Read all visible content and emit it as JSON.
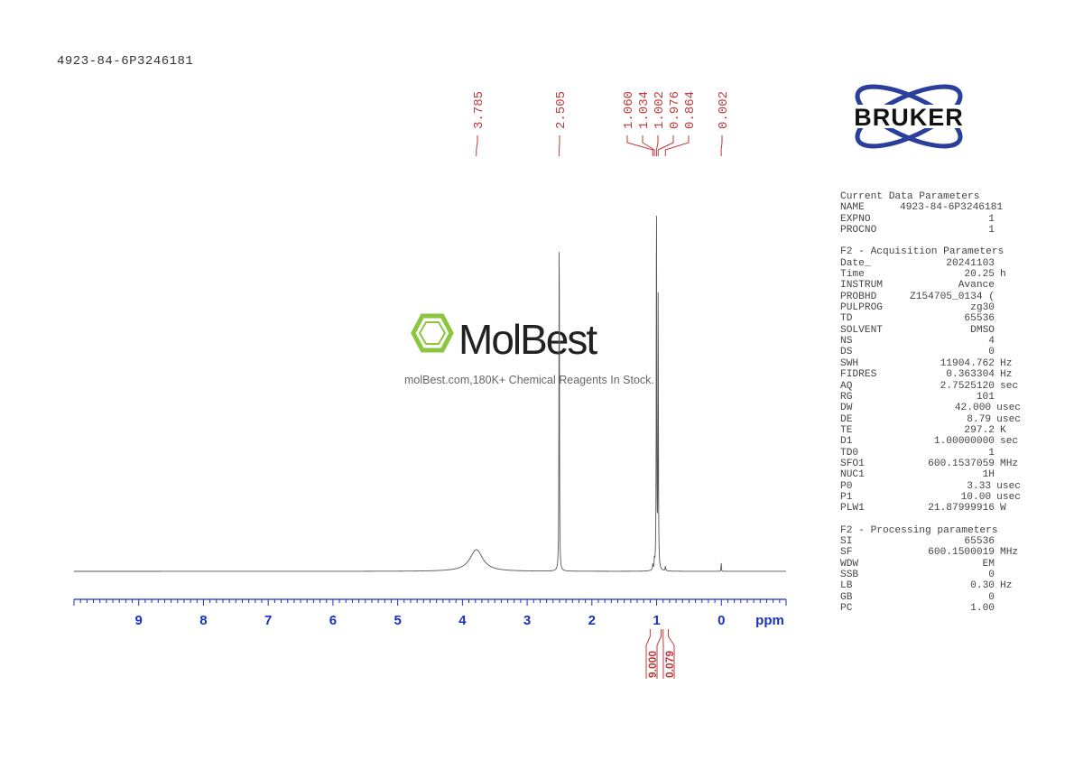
{
  "title": "4923-84-6P3246181",
  "watermark": {
    "brand": "MolBest",
    "tagline": "molBest.com,180K+ Chemical Reagents In Stock."
  },
  "logo": {
    "text": "BRUKER",
    "color": "#2a3f9b"
  },
  "parameters": {
    "sections": [
      {
        "heading": "Current Data Parameters",
        "rows": [
          {
            "key": "NAME",
            "value": "4923-84-6P3246181",
            "unit": ""
          },
          {
            "key": "EXPNO",
            "value": "1",
            "unit": ""
          },
          {
            "key": "PROCNO",
            "value": "1",
            "unit": ""
          }
        ]
      },
      {
        "heading": "F2 - Acquisition Parameters",
        "rows": [
          {
            "key": "Date_",
            "value": "20241103",
            "unit": ""
          },
          {
            "key": "Time",
            "value": "20.25",
            "unit": "h"
          },
          {
            "key": "INSTRUM",
            "value": "Avance",
            "unit": ""
          },
          {
            "key": "PROBHD",
            "value": "Z154705_0134 (",
            "unit": ""
          },
          {
            "key": "PULPROG",
            "value": "zg30",
            "unit": ""
          },
          {
            "key": "TD",
            "value": "65536",
            "unit": ""
          },
          {
            "key": "SOLVENT",
            "value": "DMSO",
            "unit": ""
          },
          {
            "key": "NS",
            "value": "4",
            "unit": ""
          },
          {
            "key": "DS",
            "value": "0",
            "unit": ""
          },
          {
            "key": "SWH",
            "value": "11904.762",
            "unit": "Hz"
          },
          {
            "key": "FIDRES",
            "value": "0.363304",
            "unit": "Hz"
          },
          {
            "key": "AQ",
            "value": "2.7525120",
            "unit": "sec"
          },
          {
            "key": "RG",
            "value": "101",
            "unit": ""
          },
          {
            "key": "DW",
            "value": "42.000",
            "unit": "usec"
          },
          {
            "key": "DE",
            "value": "8.79",
            "unit": "usec"
          },
          {
            "key": "TE",
            "value": "297.2",
            "unit": "K"
          },
          {
            "key": "D1",
            "value": "1.00000000",
            "unit": "sec"
          },
          {
            "key": "TD0",
            "value": "1",
            "unit": ""
          },
          {
            "key": "SFO1",
            "value": "600.1537059",
            "unit": "MHz"
          },
          {
            "key": "NUC1",
            "value": "1H",
            "unit": ""
          },
          {
            "key": "P0",
            "value": "3.33",
            "unit": "usec"
          },
          {
            "key": "P1",
            "value": "10.00",
            "unit": "usec"
          },
          {
            "key": "PLW1",
            "value": "21.87999916",
            "unit": "W"
          }
        ]
      },
      {
        "heading": "F2 - Processing parameters",
        "rows": [
          {
            "key": "SI",
            "value": "65536",
            "unit": ""
          },
          {
            "key": "SF",
            "value": "600.1500019",
            "unit": "MHz"
          },
          {
            "key": "WDW",
            "value": "EM",
            "unit": ""
          },
          {
            "key": "SSB",
            "value": "0",
            "unit": ""
          },
          {
            "key": "LB",
            "value": "0.30",
            "unit": "Hz"
          },
          {
            "key": "GB",
            "value": "0",
            "unit": ""
          },
          {
            "key": "PC",
            "value": "1.00",
            "unit": ""
          }
        ]
      }
    ]
  },
  "chart_data": {
    "type": "line",
    "xlabel": "ppm",
    "xlim": [
      10,
      -1
    ],
    "x_reversed": true,
    "xticks": [
      "9",
      "8",
      "7",
      "6",
      "5",
      "4",
      "3",
      "2",
      "1",
      "0"
    ],
    "peak_labels": [
      "3.785",
      "2.505",
      "1.060",
      "1.034",
      "1.002",
      "0.976",
      "0.864",
      "0.002"
    ],
    "integrals": [
      {
        "value": "9.000",
        "range": [
          1.1,
          0.93
        ]
      },
      {
        "value": "0.079",
        "range": [
          0.9,
          0.82
        ]
      }
    ],
    "peaks": [
      {
        "ppm": 3.785,
        "intensity": 24,
        "width": 0.12
      },
      {
        "ppm": 2.505,
        "intensity": 393,
        "width": 0.004
      },
      {
        "ppm": 1.002,
        "intensity": 431,
        "width": 0.004
      },
      {
        "ppm": 0.976,
        "intensity": 300,
        "width": 0.004
      },
      {
        "ppm": 1.034,
        "intensity": 10,
        "width": 0.004
      },
      {
        "ppm": 1.06,
        "intensity": 6,
        "width": 0.004
      },
      {
        "ppm": 0.864,
        "intensity": 5,
        "width": 0.006
      },
      {
        "ppm": 0.002,
        "intensity": 11,
        "width": 0.003
      }
    ],
    "colors": {
      "spectrum": "#555555",
      "axis": "#1c2fc0",
      "labels": "#c0393b"
    }
  }
}
